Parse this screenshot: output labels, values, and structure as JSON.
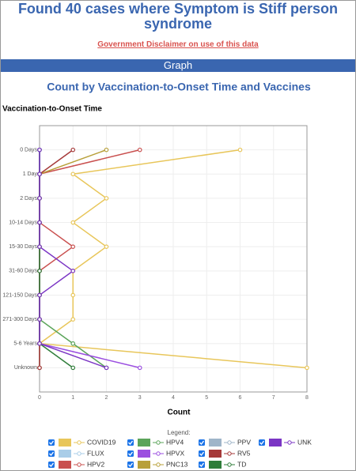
{
  "page": {
    "title": "Found 40 cases where Symptom is Stiff person syndrome",
    "disclaimer": "Government Disclaimer on use of this data",
    "section": "Graph"
  },
  "chart_data": {
    "type": "line",
    "orientation": "horizontal",
    "title": "Count by Vaccination-to-Onset Time and Vaccines",
    "ylabel": "Vaccination-to-Onset Time",
    "xlabel": "Count",
    "legend_title": "Legend:",
    "categories": [
      "0 Days",
      "1 Day",
      "2 Days",
      "10-14 Days",
      "15-30 Days",
      "31-60 Days",
      "121-150 Days",
      "271-300 Days",
      "5-6 Years",
      "Unknown"
    ],
    "xlim": [
      0,
      8
    ],
    "xticks": [
      0,
      1,
      2,
      3,
      4,
      5,
      6,
      7,
      8
    ],
    "grid": true,
    "series": [
      {
        "name": "COVID19",
        "color": "#e8c65a",
        "values": [
          6,
          1,
          2,
          1,
          2,
          1,
          1,
          1,
          0,
          8
        ]
      },
      {
        "name": "FLUX",
        "color": "#a9cde8",
        "values": [
          0,
          0,
          0,
          0,
          0,
          0,
          0,
          0,
          0,
          0
        ]
      },
      {
        "name": "HPV2",
        "color": "#c9504f",
        "values": [
          3,
          0,
          0,
          0,
          1,
          0,
          0,
          0,
          0,
          0
        ]
      },
      {
        "name": "HPV4",
        "color": "#5ba45a",
        "values": [
          0,
          0,
          0,
          0,
          0,
          0,
          0,
          0,
          1,
          2
        ]
      },
      {
        "name": "HPVX",
        "color": "#9b4fe0",
        "values": [
          0,
          0,
          0,
          0,
          0,
          0,
          0,
          0,
          0,
          3
        ]
      },
      {
        "name": "PNC13",
        "color": "#b8a03a",
        "values": [
          2,
          0,
          0,
          0,
          0,
          0,
          0,
          0,
          0,
          0
        ]
      },
      {
        "name": "PPV",
        "color": "#9fb5c9",
        "values": [
          0,
          0,
          0,
          0,
          0,
          0,
          0,
          0,
          0,
          0
        ]
      },
      {
        "name": "RV5",
        "color": "#a63a3a",
        "values": [
          1,
          0,
          0,
          0,
          0,
          0,
          0,
          0,
          0,
          0
        ]
      },
      {
        "name": "TD",
        "color": "#2f7d3a",
        "values": [
          0,
          0,
          0,
          0,
          0,
          0,
          0,
          0,
          0,
          1
        ]
      },
      {
        "name": "UNK",
        "color": "#7b35c4",
        "values": [
          0,
          0,
          0,
          0,
          0,
          1,
          0,
          0,
          0,
          2
        ]
      }
    ]
  }
}
